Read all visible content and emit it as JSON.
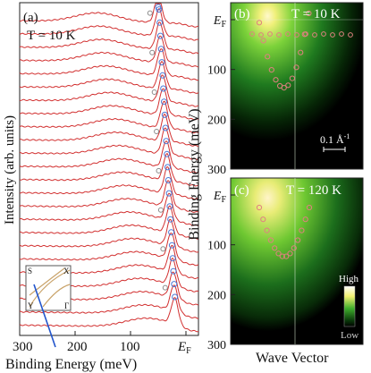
{
  "chart_data": [
    {
      "panel": "(a)",
      "type": "line",
      "annotation_temperature": "T = 10 K",
      "ylabel": "Intensity (arb. units)",
      "xlabel": "Binding Energy (meV)",
      "xlim": [
        300,
        -15
      ],
      "x_ticks": [
        "300",
        "200",
        "100",
        "E_F"
      ],
      "n_curves": 24,
      "series_color": "#d23030",
      "marker_color_peak": "#4a78d6",
      "marker_color_hump": "#8a8a8a",
      "inset": {
        "labels": [
          "S",
          "X",
          "Y",
          "Γ"
        ],
        "cut_color": "#2255cc"
      }
    },
    {
      "panel": "(b)",
      "type": "heatmap",
      "annotation_temperature": "T = 10 K",
      "y_ticks": [
        "E_F",
        "100",
        "200",
        "300"
      ],
      "ylim": [
        0,
        300
      ],
      "scale_bar": "0.1 Å-1"
    },
    {
      "panel": "(c)",
      "type": "heatmap",
      "annotation_temperature": "T = 120 K",
      "y_ticks": [
        "E_F",
        "100",
        "200",
        "300"
      ],
      "ylim": [
        0,
        300
      ],
      "colorbar": {
        "high": "High",
        "low": "Low"
      }
    }
  ],
  "shared": {
    "right_ylabel": "Binding Energy (meV)",
    "right_xlabel": "Wave Vector"
  },
  "colors": {
    "map_dark": "#000000",
    "map_mid": "#1f8a1f",
    "map_bright": "#fff6c2",
    "marker_circle": "#e08080"
  }
}
